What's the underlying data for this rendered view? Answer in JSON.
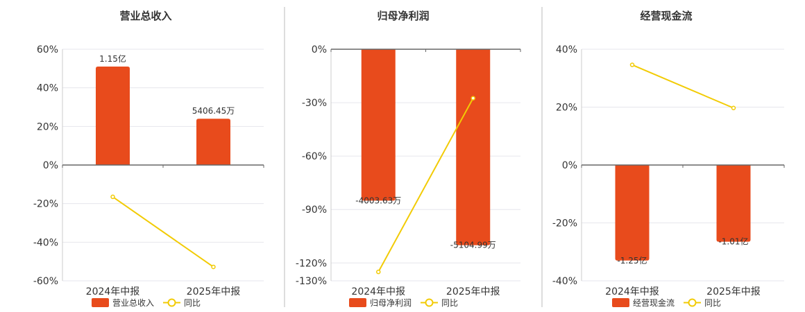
{
  "chart_data": [
    {
      "type": "bar",
      "title": "营业总收入",
      "categories": [
        "2024年中报",
        "2025年中报"
      ],
      "bar_series": {
        "name": "营业总收入",
        "values": [
          51,
          24
        ],
        "labels": [
          "1.15亿",
          "5406.45万"
        ]
      },
      "line_series": {
        "name": "同比",
        "values": [
          -16.5,
          -52.8
        ]
      },
      "ylim": [
        -60,
        60
      ],
      "y_ticks": [
        60,
        40,
        20,
        0,
        -20,
        -40,
        -60
      ],
      "y_tick_labels": [
        "60%",
        "40%",
        "20%",
        "0%",
        "-20%",
        "-40%",
        "-60%"
      ],
      "grid": true,
      "legend_position": "bottom"
    },
    {
      "type": "bar",
      "title": "归母净利润",
      "categories": [
        "2024年中报",
        "2025年中报"
      ],
      "bar_series": {
        "name": "归母净利润",
        "values": [
          -85,
          -110
        ],
        "labels": [
          "-4003.63万",
          "-5104.99万"
        ]
      },
      "line_series": {
        "name": "同比",
        "values": [
          -125,
          -27.5
        ]
      },
      "ylim": [
        -130,
        0
      ],
      "y_ticks": [
        0,
        -30,
        -60,
        -90,
        -120,
        -130
      ],
      "y_tick_labels": [
        "0%",
        "-30%",
        "-60%",
        "-90%",
        "-120%",
        "-130%"
      ],
      "grid": true,
      "legend_position": "bottom"
    },
    {
      "type": "bar",
      "title": "经营现金流",
      "categories": [
        "2024年中报",
        "2025年中报"
      ],
      "bar_series": {
        "name": "经营现金流",
        "values": [
          -33,
          -26.5
        ],
        "labels": [
          "-1.25亿",
          "-1.01亿"
        ]
      },
      "line_series": {
        "name": "同比",
        "values": [
          34.6,
          19.7
        ]
      },
      "ylim": [
        -40,
        40
      ],
      "y_ticks": [
        40,
        20,
        0,
        -20,
        -40
      ],
      "y_tick_labels": [
        "40%",
        "20%",
        "0%",
        "-20%",
        "-40%"
      ],
      "grid": true,
      "legend_position": "bottom"
    }
  ],
  "colors": {
    "bar": "#E84B1C",
    "line": "#F2CB05",
    "grid": "#E6E6EC",
    "axis": "#666666",
    "divider": "#BBBBBB"
  }
}
